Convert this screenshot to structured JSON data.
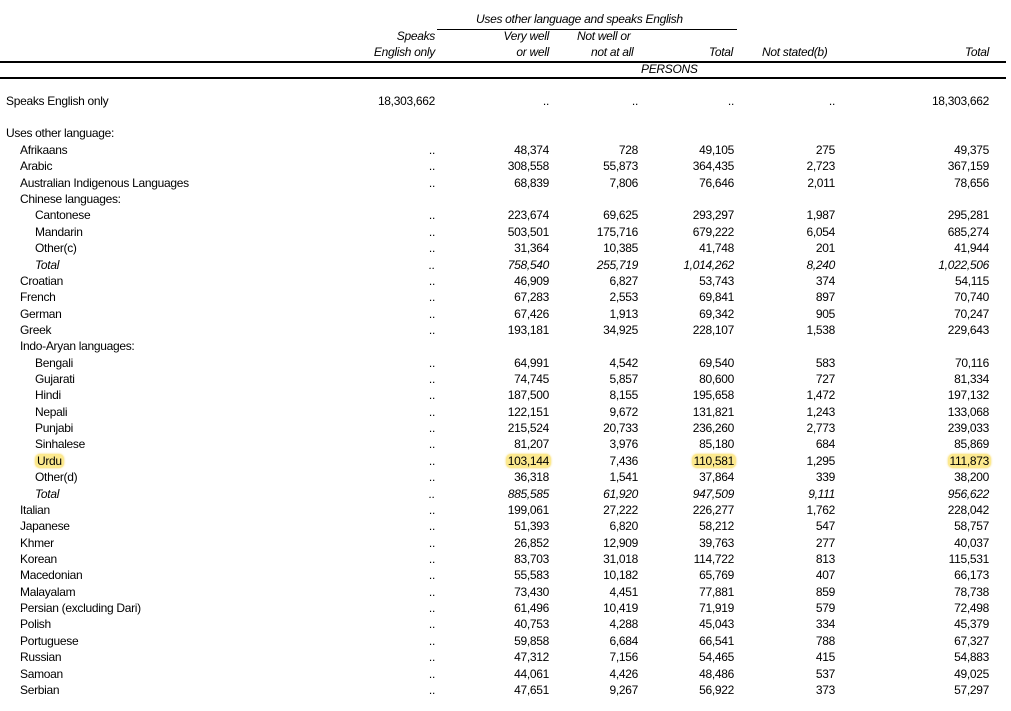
{
  "header": {
    "group_label": "Uses other language and speaks English",
    "col_speaks_1": "Speaks",
    "col_speaks_2": "English only",
    "col_verywell_1": "Very well",
    "col_verywell_2": "or well",
    "col_notwell_1": "Not well or",
    "col_notwell_2": "not at all",
    "col_total": "Total",
    "col_notstated": "Not stated(b)",
    "col_grand_total": "Total",
    "unit": "PERSONS"
  },
  "speaks_english_only_row": {
    "label": "Speaks English only",
    "values": [
      "18,303,662",
      "..",
      "..",
      "..",
      "..",
      "18,303,662"
    ]
  },
  "section_label": "Uses other language:",
  "highlight_color": "#fce98e",
  "rows": [
    {
      "label": "Afrikaans",
      "level": 1,
      "values": [
        "..",
        "48,374",
        "728",
        "49,105",
        "275",
        "49,375"
      ]
    },
    {
      "label": "Arabic",
      "level": 1,
      "values": [
        "..",
        "308,558",
        "55,873",
        "364,435",
        "2,723",
        "367,159"
      ]
    },
    {
      "label": "Australian Indigenous Languages",
      "level": 1,
      "values": [
        "..",
        "68,839",
        "7,806",
        "76,646",
        "2,011",
        "78,656"
      ]
    },
    {
      "label": "Chinese languages:",
      "level": 1,
      "values": []
    },
    {
      "label": "Cantonese",
      "level": 2,
      "values": [
        "..",
        "223,674",
        "69,625",
        "293,297",
        "1,987",
        "295,281"
      ]
    },
    {
      "label": "Mandarin",
      "level": 2,
      "values": [
        "..",
        "503,501",
        "175,716",
        "679,222",
        "6,054",
        "685,274"
      ]
    },
    {
      "label": "Other(c)",
      "level": 2,
      "values": [
        "..",
        "31,364",
        "10,385",
        "41,748",
        "201",
        "41,944"
      ]
    },
    {
      "label": "Total",
      "level": 2,
      "italic": true,
      "values": [
        "..",
        "758,540",
        "255,719",
        "1,014,262",
        "8,240",
        "1,022,506"
      ]
    },
    {
      "label": "Croatian",
      "level": 1,
      "values": [
        "..",
        "46,909",
        "6,827",
        "53,743",
        "374",
        "54,115"
      ]
    },
    {
      "label": "French",
      "level": 1,
      "values": [
        "..",
        "67,283",
        "2,553",
        "69,841",
        "897",
        "70,740"
      ]
    },
    {
      "label": "German",
      "level": 1,
      "values": [
        "..",
        "67,426",
        "1,913",
        "69,342",
        "905",
        "70,247"
      ]
    },
    {
      "label": "Greek",
      "level": 1,
      "values": [
        "..",
        "193,181",
        "34,925",
        "228,107",
        "1,538",
        "229,643"
      ]
    },
    {
      "label": "Indo-Aryan languages:",
      "level": 1,
      "values": []
    },
    {
      "label": "Bengali",
      "level": 2,
      "values": [
        "..",
        "64,991",
        "4,542",
        "69,540",
        "583",
        "70,116"
      ]
    },
    {
      "label": "Gujarati",
      "level": 2,
      "values": [
        "..",
        "74,745",
        "5,857",
        "80,600",
        "727",
        "81,334"
      ]
    },
    {
      "label": "Hindi",
      "level": 2,
      "values": [
        "..",
        "187,500",
        "8,155",
        "195,658",
        "1,472",
        "197,132"
      ]
    },
    {
      "label": "Nepali",
      "level": 2,
      "values": [
        "..",
        "122,151",
        "9,672",
        "131,821",
        "1,243",
        "133,068"
      ]
    },
    {
      "label": "Punjabi",
      "level": 2,
      "values": [
        "..",
        "215,524",
        "20,733",
        "236,260",
        "2,773",
        "239,033"
      ]
    },
    {
      "label": "Sinhalese",
      "level": 2,
      "values": [
        "..",
        "81,207",
        "3,976",
        "85,180",
        "684",
        "85,869"
      ]
    },
    {
      "label": "Urdu",
      "level": 2,
      "highlight": [
        true,
        false,
        true,
        false,
        true,
        false,
        true
      ],
      "values": [
        "..",
        "103,144",
        "7,436",
        "110,581",
        "1,295",
        "111,873"
      ]
    },
    {
      "label": "Other(d)",
      "level": 2,
      "values": [
        "..",
        "36,318",
        "1,541",
        "37,864",
        "339",
        "38,200"
      ]
    },
    {
      "label": "Total",
      "level": 2,
      "italic": true,
      "values": [
        "..",
        "885,585",
        "61,920",
        "947,509",
        "9,111",
        "956,622"
      ]
    },
    {
      "label": "Italian",
      "level": 1,
      "values": [
        "..",
        "199,061",
        "27,222",
        "226,277",
        "1,762",
        "228,042"
      ]
    },
    {
      "label": "Japanese",
      "level": 1,
      "values": [
        "..",
        "51,393",
        "6,820",
        "58,212",
        "547",
        "58,757"
      ]
    },
    {
      "label": "Khmer",
      "level": 1,
      "values": [
        "..",
        "26,852",
        "12,909",
        "39,763",
        "277",
        "40,037"
      ]
    },
    {
      "label": "Korean",
      "level": 1,
      "values": [
        "..",
        "83,703",
        "31,018",
        "114,722",
        "813",
        "115,531"
      ]
    },
    {
      "label": "Macedonian",
      "level": 1,
      "values": [
        "..",
        "55,583",
        "10,182",
        "65,769",
        "407",
        "66,173"
      ]
    },
    {
      "label": "Malayalam",
      "level": 1,
      "values": [
        "..",
        "73,430",
        "4,451",
        "77,881",
        "859",
        "78,738"
      ]
    },
    {
      "label": "Persian (excluding Dari)",
      "level": 1,
      "values": [
        "..",
        "61,496",
        "10,419",
        "71,919",
        "579",
        "72,498"
      ]
    },
    {
      "label": "Polish",
      "level": 1,
      "values": [
        "..",
        "40,753",
        "4,288",
        "45,043",
        "334",
        "45,379"
      ]
    },
    {
      "label": "Portuguese",
      "level": 1,
      "values": [
        "..",
        "59,858",
        "6,684",
        "66,541",
        "788",
        "67,327"
      ]
    },
    {
      "label": "Russian",
      "level": 1,
      "values": [
        "..",
        "47,312",
        "7,156",
        "54,465",
        "415",
        "54,883"
      ]
    },
    {
      "label": "Samoan",
      "level": 1,
      "values": [
        "..",
        "44,061",
        "4,426",
        "48,486",
        "537",
        "49,025"
      ]
    },
    {
      "label": "Serbian",
      "level": 1,
      "values": [
        "..",
        "47,651",
        "9,267",
        "56,922",
        "373",
        "57,297"
      ]
    }
  ]
}
